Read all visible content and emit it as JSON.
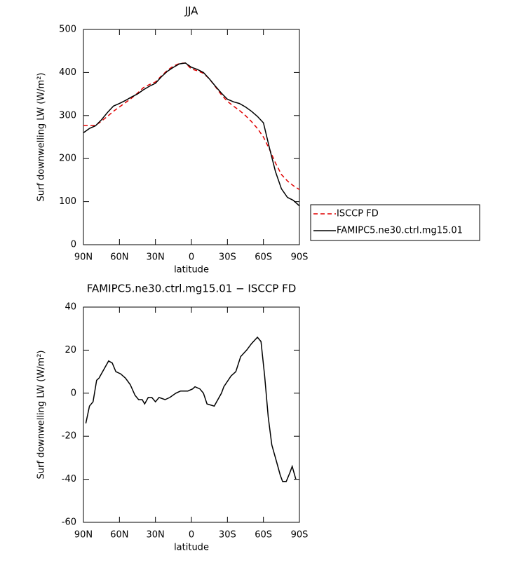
{
  "chart_data": [
    {
      "type": "line",
      "title": "JJA",
      "xlabel": "latitude",
      "ylabel": "Surf downwelling LW (W/m²)",
      "xlim": [
        90,
        -90
      ],
      "xticks": [
        {
          "value": 90,
          "label": "90N"
        },
        {
          "value": 60,
          "label": "60N"
        },
        {
          "value": 30,
          "label": "30N"
        },
        0,
        {
          "value": -30,
          "label": "30S"
        },
        {
          "value": -60,
          "label": "60S"
        },
        {
          "value": -90,
          "label": "90S"
        }
      ],
      "ylim": [
        0,
        500
      ],
      "yticks": [
        0,
        100,
        200,
        300,
        400,
        500
      ],
      "x": [
        90,
        85,
        80,
        75,
        70,
        65,
        60,
        55,
        50,
        45,
        40,
        35,
        30,
        25,
        20,
        15,
        10,
        5,
        0,
        -5,
        -10,
        -15,
        -20,
        -25,
        -30,
        -35,
        -40,
        -45,
        -50,
        -55,
        -60,
        -65,
        -70,
        -75,
        -80,
        -85,
        -90
      ],
      "series": [
        {
          "name": "ISCCP FD",
          "color": "#e00000",
          "linestyle": "dashed",
          "values": [
            277,
            277,
            277,
            287,
            298,
            310,
            320,
            330,
            340,
            352,
            365,
            372,
            378,
            392,
            405,
            415,
            421,
            422,
            408,
            404,
            398,
            385,
            367,
            348,
            333,
            322,
            312,
            300,
            286,
            270,
            250,
            222,
            190,
            163,
            148,
            137,
            128
          ]
        },
        {
          "name": "FAMIPC5.ne30.ctrl.mg15.01",
          "color": "#000000",
          "linestyle": "solid",
          "values": [
            260,
            270,
            276,
            290,
            307,
            322,
            328,
            335,
            343,
            350,
            360,
            368,
            375,
            390,
            403,
            412,
            420,
            422,
            412,
            407,
            400,
            385,
            368,
            352,
            338,
            332,
            328,
            320,
            310,
            298,
            283,
            225,
            170,
            130,
            110,
            103,
            90
          ]
        }
      ],
      "legend": "outside-right"
    },
    {
      "type": "line",
      "title": "FAMIPC5.ne30.ctrl.mg15.01 − ISCCP FD",
      "xlabel": "latitude",
      "ylabel": "Surf downwelling LW (W/m²)",
      "xlim": [
        90,
        -90
      ],
      "xticks": [
        {
          "value": 90,
          "label": "90N"
        },
        {
          "value": 60,
          "label": "60N"
        },
        {
          "value": 30,
          "label": "30N"
        },
        0,
        {
          "value": -30,
          "label": "30S"
        },
        {
          "value": -60,
          "label": "60S"
        },
        {
          "value": -90,
          "label": "90S"
        }
      ],
      "ylim": [
        -60,
        40
      ],
      "yticks": [
        -60,
        -40,
        -20,
        0,
        20,
        40
      ],
      "x": [
        88,
        85,
        82,
        79,
        77,
        69,
        66,
        63,
        59,
        55,
        51,
        47,
        44,
        41,
        39,
        36,
        33,
        30,
        27,
        22,
        18,
        13,
        9,
        3,
        -1,
        -3,
        -7,
        -10,
        -13,
        -19,
        -25,
        -27,
        -33,
        -37,
        -41,
        -46,
        -50,
        -55,
        -58,
        -61,
        -64,
        -67,
        -71,
        -74,
        -76,
        -79,
        -82,
        -84,
        -87
      ],
      "series": [
        {
          "color": "#000000",
          "linestyle": "solid",
          "values": [
            -14,
            -6,
            -4,
            6,
            7,
            15,
            14,
            10,
            9,
            7,
            4,
            -1,
            -3,
            -3,
            -5,
            -2,
            -2,
            -4,
            -2,
            -3,
            -2,
            0,
            1,
            1,
            2,
            3,
            2,
            0,
            -5,
            -6,
            0,
            3,
            8,
            10,
            17,
            20,
            23,
            26,
            24,
            8,
            -11,
            -24,
            -32,
            -38,
            -41,
            -41,
            -37,
            -34,
            -40
          ]
        }
      ]
    }
  ]
}
